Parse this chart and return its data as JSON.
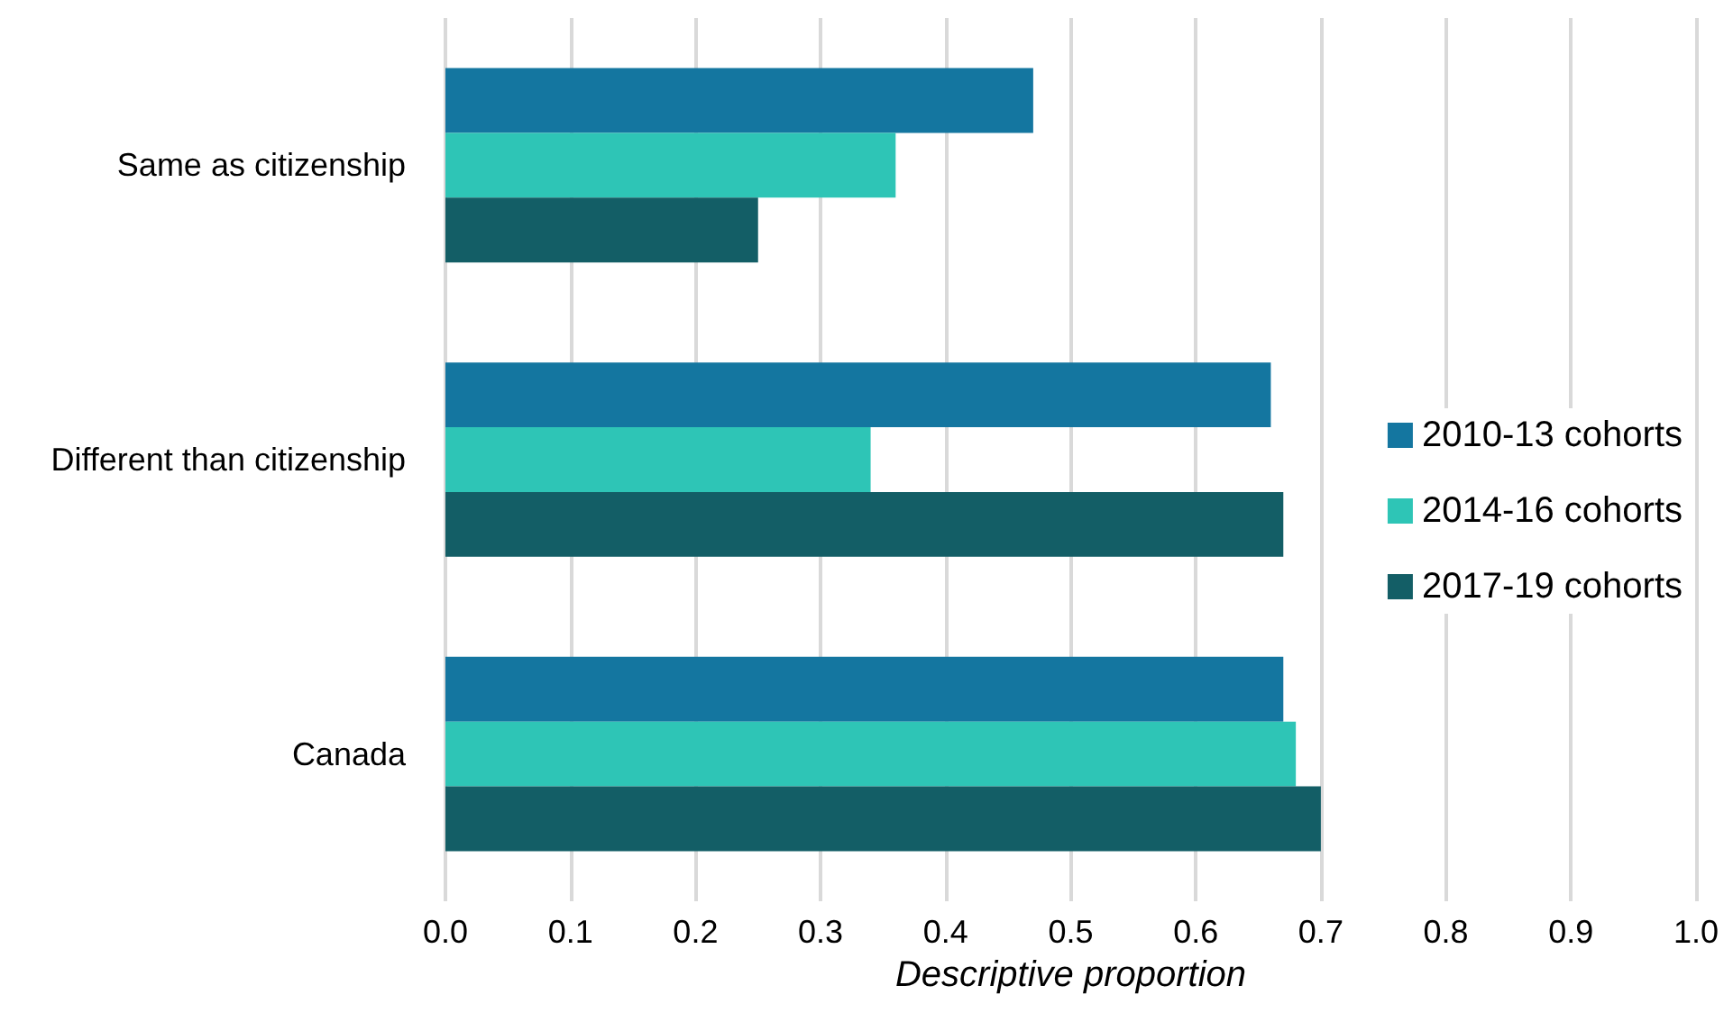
{
  "chart_data": {
    "type": "bar",
    "orientation": "horizontal",
    "xlabel": "Descriptive proportion",
    "categories": [
      "Same as citizenship",
      "Different than citizenship",
      "Canada"
    ],
    "series": [
      {
        "name": "2010-13 cohorts",
        "color": "#1476a0",
        "values": [
          0.47,
          0.66,
          0.67
        ]
      },
      {
        "name": "2014-16 cohorts",
        "color": "#2ec5b6",
        "values": [
          0.36,
          0.34,
          0.68
        ]
      },
      {
        "name": "2017-19 cohorts",
        "color": "#135e66",
        "values": [
          0.25,
          0.67,
          0.7
        ]
      }
    ],
    "xlim": [
      0,
      1
    ],
    "xticks": [
      {
        "value": 0,
        "label": "0.0"
      },
      0.1,
      0.2,
      0.3,
      0.4,
      0.5,
      0.6,
      0.7,
      0.8,
      0.9,
      {
        "value": 1,
        "label": "1.0"
      }
    ],
    "grid": "x",
    "legend": "right"
  }
}
